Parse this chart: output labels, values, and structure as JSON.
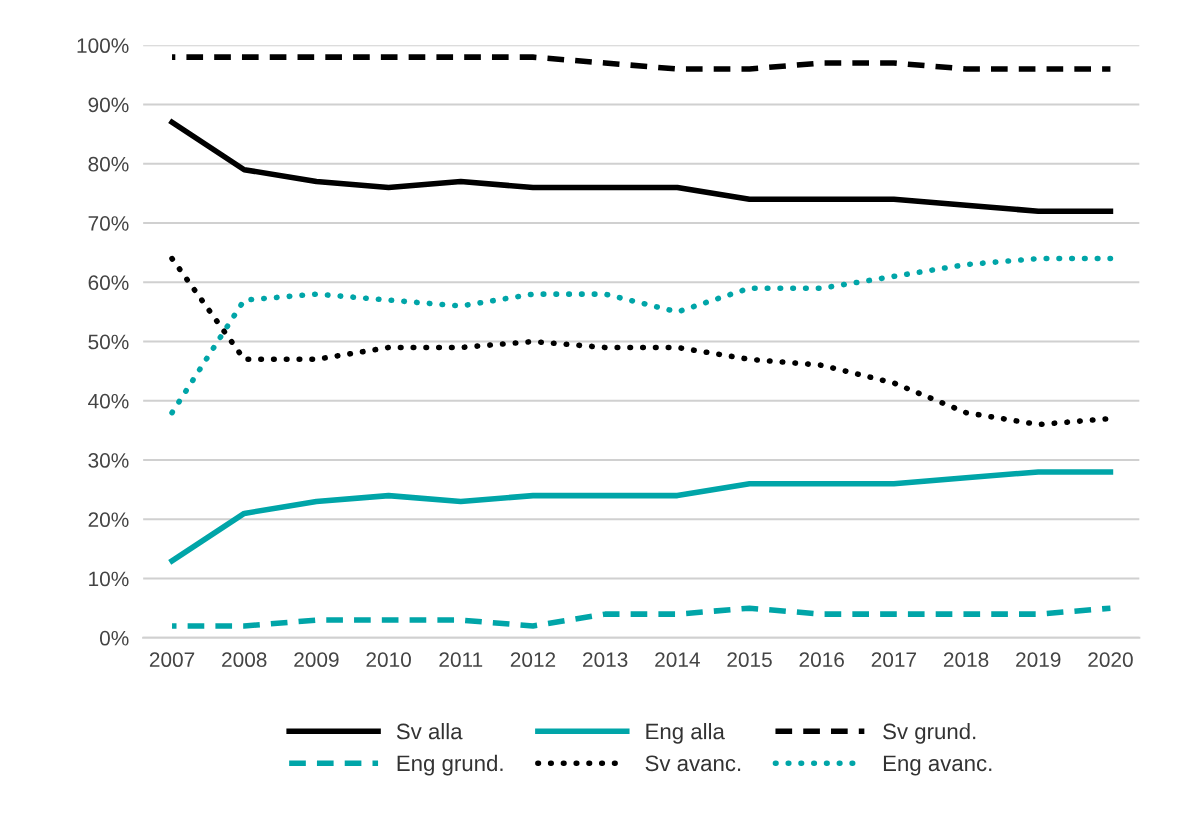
{
  "chart_data": {
    "type": "line",
    "categories": [
      "2007",
      "2008",
      "2009",
      "2010",
      "2011",
      "2012",
      "2013",
      "2014",
      "2015",
      "2016",
      "2017",
      "2018",
      "2019",
      "2020"
    ],
    "series": [
      {
        "name": "Sv alla",
        "color": "#000000",
        "line_style": "solid",
        "values": [
          87,
          79,
          77,
          76,
          77,
          76,
          76,
          76,
          74,
          74,
          74,
          73,
          72,
          72
        ]
      },
      {
        "name": "Eng alla",
        "color": "#00a5a8",
        "line_style": "solid",
        "values": [
          13,
          21,
          23,
          24,
          23,
          24,
          24,
          24,
          26,
          26,
          26,
          27,
          28,
          28
        ]
      },
      {
        "name": "Sv grund.",
        "color": "#000000",
        "line_style": "dashed",
        "values": [
          98,
          98,
          98,
          98,
          98,
          98,
          97,
          96,
          96,
          97,
          97,
          96,
          96,
          96
        ]
      },
      {
        "name": "Eng grund.",
        "color": "#00a5a8",
        "line_style": "dashed",
        "values": [
          2,
          2,
          3,
          3,
          3,
          2,
          4,
          4,
          5,
          4,
          4,
          4,
          4,
          5
        ]
      },
      {
        "name": "Sv avanc.",
        "color": "#000000",
        "line_style": "dotted",
        "values": [
          64,
          47,
          47,
          49,
          49,
          50,
          49,
          49,
          47,
          46,
          43,
          38,
          36,
          37
        ]
      },
      {
        "name": "Eng avanc.",
        "color": "#00a5a8",
        "line_style": "dotted",
        "values": [
          38,
          57,
          58,
          57,
          56,
          58,
          58,
          55,
          59,
          59,
          61,
          63,
          64,
          64
        ]
      }
    ],
    "ylim": [
      0,
      100
    ],
    "yticks": [
      {
        "value": 0,
        "label": "0%"
      },
      {
        "value": 10,
        "label": "10%"
      },
      {
        "value": 20,
        "label": "20%"
      },
      {
        "value": 30,
        "label": "30%"
      },
      {
        "value": 40,
        "label": "40%"
      },
      {
        "value": 50,
        "label": "50%"
      },
      {
        "value": 60,
        "label": "60%"
      },
      {
        "value": 70,
        "label": "70%"
      },
      {
        "value": 80,
        "label": "80%"
      },
      {
        "value": 90,
        "label": "90%"
      },
      {
        "value": 100,
        "label": "100%"
      }
    ],
    "grid": "y",
    "legend": "bottom",
    "marker": "none"
  }
}
